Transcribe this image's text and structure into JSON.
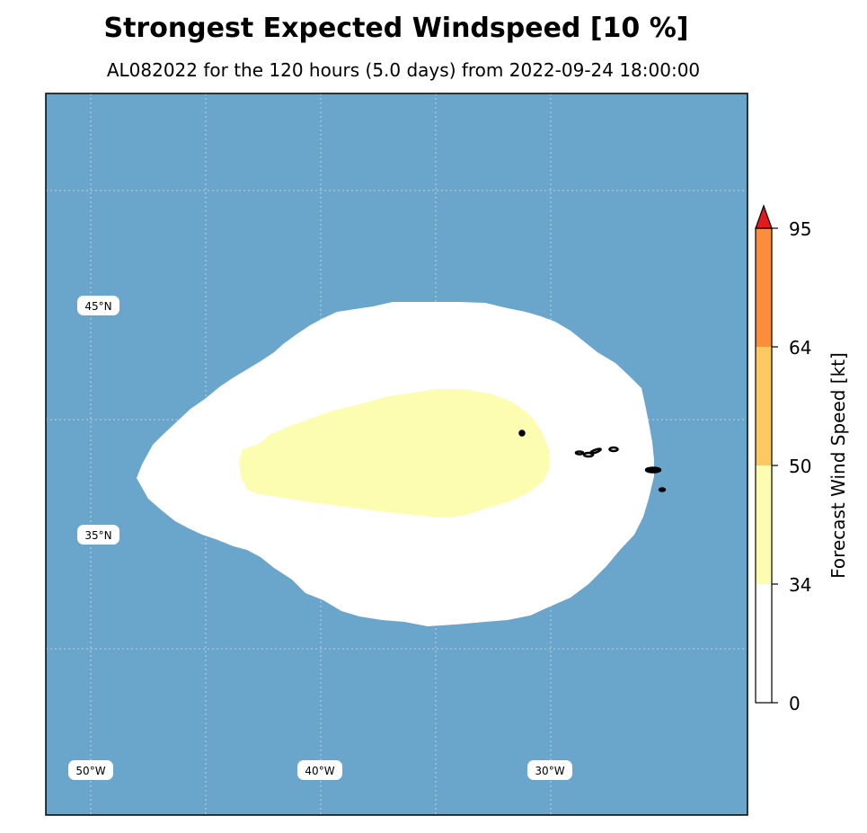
{
  "title": "Strongest Expected Windspeed [10 %]",
  "subtitle": "AL082022 for the 120 hours (5.0 days) from 2022-09-24 18:00:00",
  "map": {
    "ocean_color": "#6aa6cb",
    "lat_labels": [
      "45°N",
      "35°N"
    ],
    "lon_labels": [
      "50°W",
      "40°W",
      "30°W"
    ],
    "swath_34kt_color": "#ffffff",
    "swath_50kt_color": "#fdfdb2",
    "land_outline_color": "#000000"
  },
  "colorbar": {
    "label": "Forecast Wind Speed [kt]",
    "ticks": [
      "0",
      "34",
      "50",
      "64",
      "95"
    ],
    "levels": [
      0,
      34,
      50,
      64,
      95
    ],
    "colors": [
      "#ffffff",
      "#fdfdb2",
      "#fdc860",
      "#fd8c3c",
      "#e31a1c"
    ]
  }
}
